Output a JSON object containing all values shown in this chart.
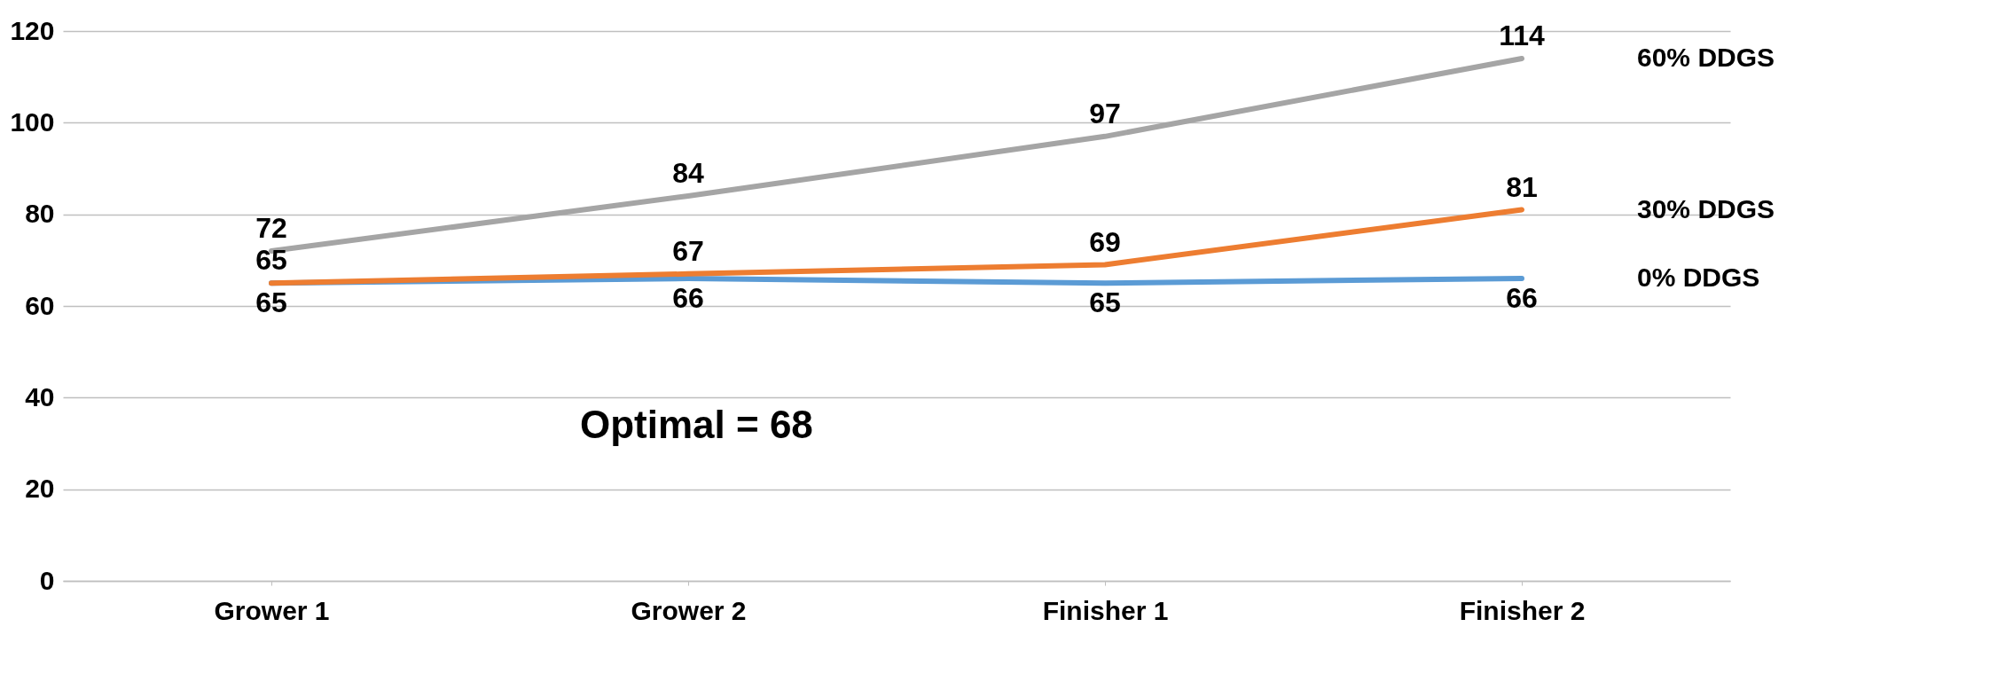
{
  "chart_data": {
    "type": "line",
    "categories": [
      "Grower 1",
      "Grower 2",
      "Finisher 1",
      "Finisher 2"
    ],
    "series": [
      {
        "name": "0% DDGS",
        "color": "#5b9bd5",
        "values": [
          65,
          66,
          65,
          66
        ]
      },
      {
        "name": "30% DDGS",
        "color": "#ed7d31",
        "values": [
          65,
          67,
          69,
          81
        ]
      },
      {
        "name": "60% DDGS",
        "color": "#a5a5a5",
        "values": [
          72,
          84,
          97,
          114
        ]
      }
    ],
    "ylim": [
      0,
      120
    ],
    "yticks": [
      0,
      20,
      40,
      60,
      80,
      100,
      120
    ],
    "grid": "y",
    "data_labels": true,
    "annotations": [
      "Optimal = 68"
    ]
  }
}
